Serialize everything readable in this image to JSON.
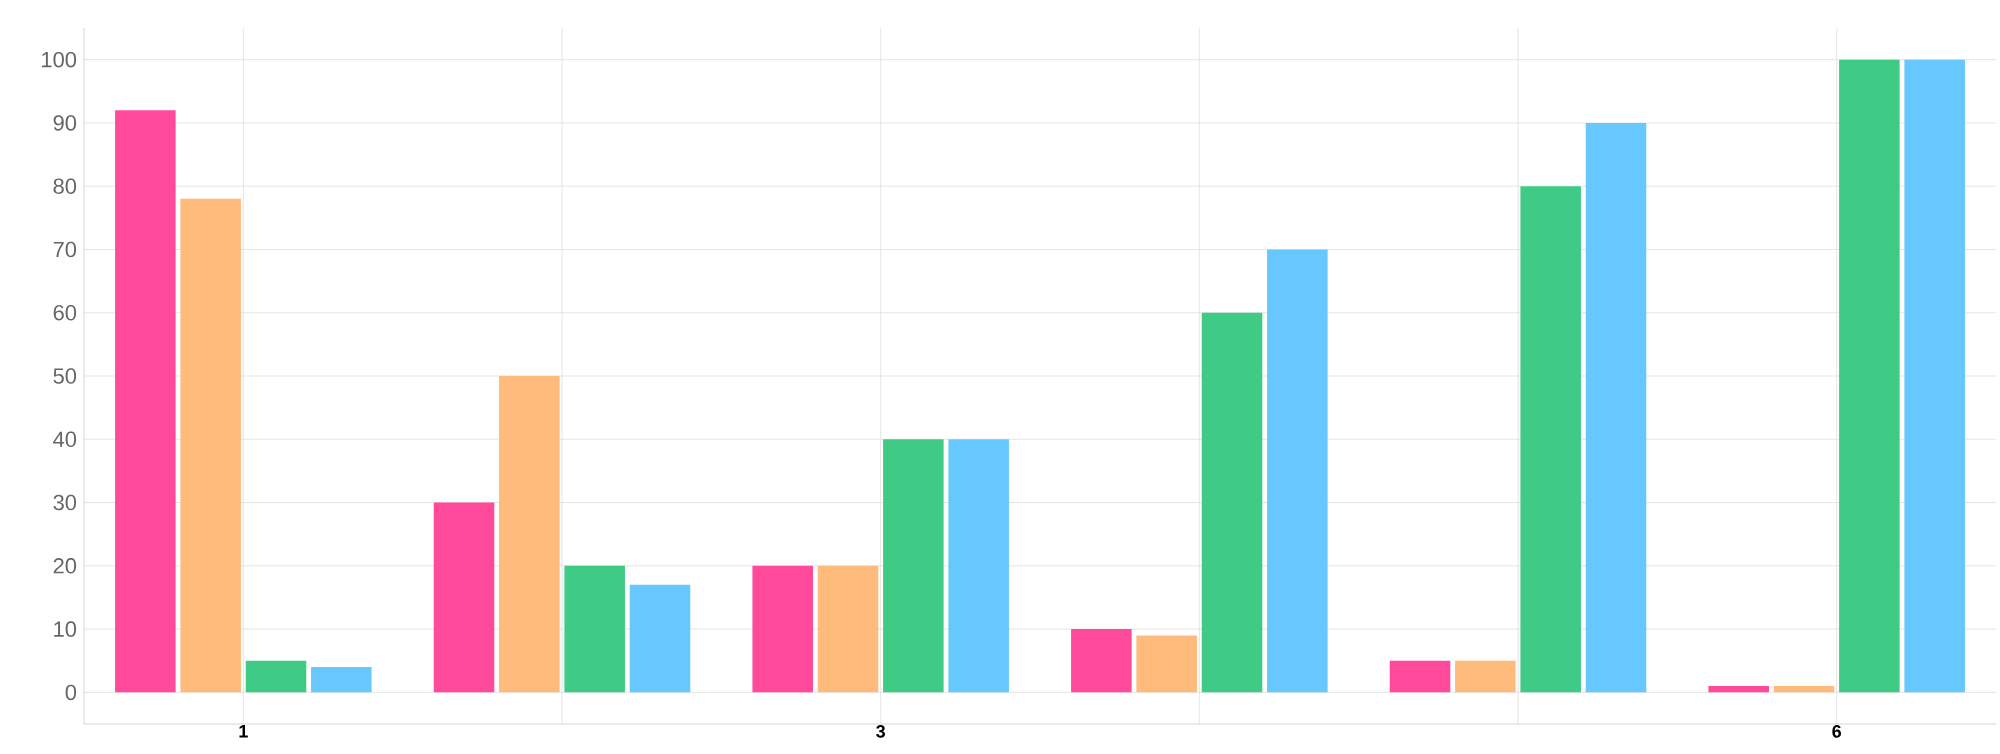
{
  "chart_data": {
    "type": "bar",
    "categories": [
      "1",
      null,
      "3",
      null,
      null,
      "6"
    ],
    "series": [
      {
        "color": "#ff4a9b",
        "values": [
          92,
          30,
          20,
          10,
          5,
          1
        ]
      },
      {
        "color": "#ffbb7c",
        "values": [
          78,
          50,
          20,
          9,
          5,
          1
        ]
      },
      {
        "color": "#3fcb86",
        "values": [
          5,
          20,
          40,
          60,
          80,
          100
        ]
      },
      {
        "color": "#66c8ff",
        "values": [
          4,
          17,
          40,
          70,
          90,
          100
        ]
      }
    ],
    "ylim": [
      -5,
      105
    ],
    "yticks": [
      0,
      10,
      20,
      30,
      40,
      50,
      60,
      70,
      80,
      90,
      100
    ],
    "grid": true
  }
}
